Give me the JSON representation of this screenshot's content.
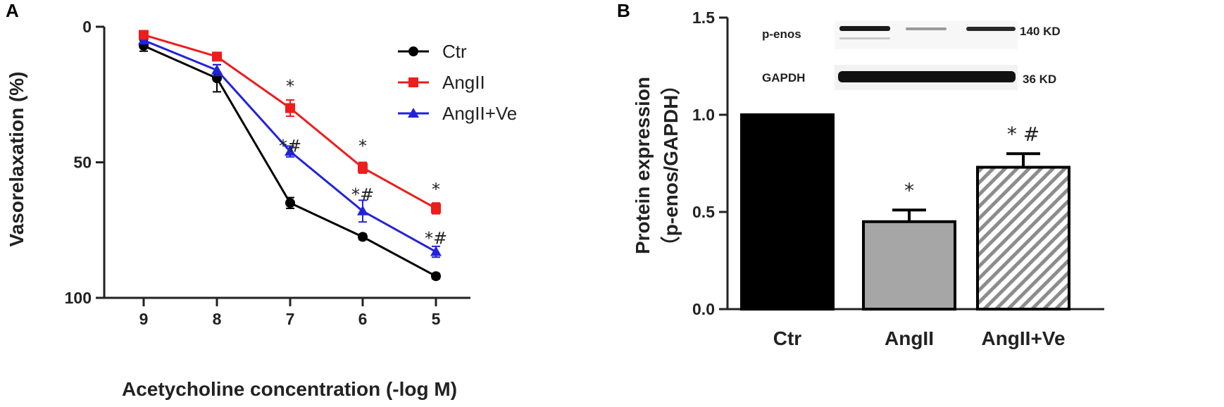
{
  "panels": {
    "a": "A",
    "b": "B"
  },
  "chart_data": [
    {
      "type": "line",
      "panel": "A",
      "xlabel": "Acetycholine concentration (-log M)",
      "ylabel": "Vasorelaxation (%)",
      "x": [
        9,
        8,
        7,
        6,
        5
      ],
      "x_tick_labels": [
        "9",
        "8",
        "7",
        "6",
        "5"
      ],
      "x_reversed": true,
      "ylim": [
        0,
        100
      ],
      "y_inverted": true,
      "y_ticks": [
        0,
        50,
        100
      ],
      "y_tick_labels": [
        "0",
        "50",
        "100"
      ],
      "legend_position": "top-right",
      "series": [
        {
          "name": "Ctr",
          "color": "#000000",
          "marker": "circle",
          "values": [
            7,
            19,
            65,
            77.5,
            92
          ],
          "errors": [
            2,
            5,
            2,
            1,
            1
          ]
        },
        {
          "name": "AngII",
          "color": "#ee1c1c",
          "marker": "square",
          "values": [
            3,
            11,
            30,
            52,
            67
          ],
          "errors": [
            1,
            1,
            3,
            2,
            2
          ]
        },
        {
          "name": "AngII+Ve",
          "color": "#2222dd",
          "marker": "triangle",
          "values": [
            5,
            16,
            46,
            68,
            83
          ],
          "errors": [
            1,
            2,
            2,
            4,
            2
          ]
        }
      ],
      "annotations": [
        {
          "text": "*",
          "x": 7,
          "y": 22
        },
        {
          "text": "*#",
          "x": 7,
          "y": 44
        },
        {
          "text": "*",
          "x": 6,
          "y": 44
        },
        {
          "text": "*#",
          "x": 6,
          "y": 62
        },
        {
          "text": "*",
          "x": 5,
          "y": 60
        },
        {
          "text": "*#",
          "x": 5,
          "y": 78
        }
      ]
    },
    {
      "type": "bar",
      "panel": "B",
      "ylabel_line1": "Protein expression",
      "ylabel_line2": "（p-enos/GAPDH）",
      "categories": [
        "Ctr",
        "AngII",
        "AngII+Ve"
      ],
      "values": [
        1.0,
        0.45,
        0.73
      ],
      "errors": [
        0,
        0.06,
        0.07
      ],
      "fills": [
        "#000000",
        "#a6a6a6",
        "hatch"
      ],
      "ylim": [
        0,
        1.5
      ],
      "y_ticks": [
        0,
        0.5,
        1.0,
        1.5
      ],
      "y_tick_labels": [
        "0.0",
        "0.5",
        "1.0",
        "1.5"
      ],
      "significance": [
        "",
        "*",
        "* #"
      ],
      "blot": {
        "rows": [
          {
            "label": "p-enos",
            "size_label": "140 KD"
          },
          {
            "label": "GAPDH",
            "size_label": "36 KD"
          }
        ]
      }
    }
  ]
}
